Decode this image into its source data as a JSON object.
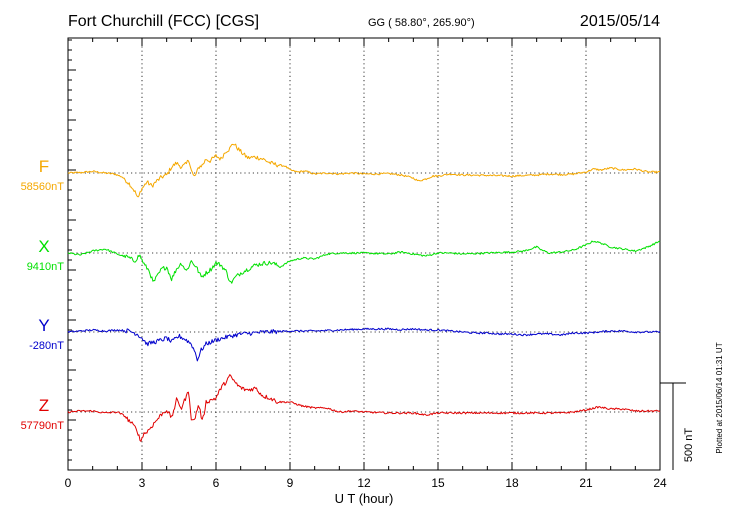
{
  "chart_data": {
    "type": "line",
    "title": "Fort Churchill (FCC)  [CGS]",
    "coords": "GG ( 58.80°, 265.90°)",
    "date": "2015/05/14",
    "xlabel": "U T (hour)",
    "xlim": [
      0,
      24
    ],
    "xticks": [
      "0",
      "3",
      "6",
      "9",
      "12",
      "15",
      "18",
      "21",
      "24"
    ],
    "scale_label": "500 nT",
    "scale_nT": 500,
    "plotted_note": "Plotted at 2015/06/14 01:31  UT",
    "grid": "dotted vertical at 3-hour ticks, dotted baseline per series",
    "series": [
      {
        "name": "F",
        "baseline_label": "58560nT",
        "color": "#f5a800",
        "offset_nT": 1050,
        "x": [
          0,
          0.5,
          1,
          1.5,
          1.9,
          2.2,
          2.5,
          2.7,
          2.85,
          2.95,
          3.05,
          3.2,
          3.4,
          3.6,
          3.8,
          4.0,
          4.2,
          4.4,
          4.6,
          4.8,
          4.9,
          5.0,
          5.1,
          5.2,
          5.3,
          5.45,
          5.6,
          5.75,
          6.0,
          6.2,
          6.4,
          6.55,
          6.7,
          6.9,
          7.1,
          7.3,
          7.6,
          7.9,
          8.2,
          8.5,
          8.8,
          9.0,
          9.3,
          9.6,
          10,
          10.5,
          11,
          11.5,
          12,
          12.5,
          13,
          13.5,
          14,
          14.2,
          14.5,
          14.8,
          15,
          15.5,
          16,
          17,
          18,
          19,
          19.5,
          20,
          20.5,
          21,
          21.3,
          21.6,
          22,
          22.5,
          23,
          23.5,
          24
        ],
        "values": [
          0,
          2,
          8,
          0,
          -5,
          -20,
          -55,
          -90,
          -130,
          -85,
          -70,
          -45,
          -65,
          -40,
          -20,
          -10,
          30,
          50,
          30,
          45,
          70,
          15,
          -20,
          -5,
          30,
          40,
          70,
          60,
          85,
          70,
          110,
          120,
          150,
          120,
          95,
          75,
          80,
          70,
          50,
          40,
          35,
          15,
          5,
          10,
          -5,
          0,
          -5,
          0,
          -5,
          -5,
          -3,
          -10,
          -25,
          -40,
          -30,
          -15,
          -15,
          -5,
          -10,
          -12,
          -15,
          -10,
          -5,
          -8,
          -5,
          5,
          20,
          15,
          25,
          15,
          20,
          5,
          5
        ]
      },
      {
        "name": "X",
        "baseline_label": "9410nT",
        "color": "#00e000",
        "offset_nT": 650,
        "x": [
          0,
          0.5,
          1,
          1.5,
          1.8,
          2.1,
          2.4,
          2.7,
          2.9,
          3.1,
          3.3,
          3.45,
          3.6,
          3.8,
          4.0,
          4.2,
          4.4,
          4.6,
          4.8,
          5.0,
          5.2,
          5.4,
          5.6,
          5.8,
          6.0,
          6.2,
          6.4,
          6.6,
          6.8,
          7.0,
          7.3,
          7.6,
          8.0,
          8.3,
          8.6,
          9,
          9.5,
          10,
          10.5,
          11,
          12,
          13,
          13.5,
          14,
          14.5,
          15,
          15.5,
          16,
          17,
          18,
          18.5,
          19,
          19.2,
          19.5,
          20,
          20.5,
          21,
          21.3,
          21.6,
          22,
          22.5,
          23,
          23.5,
          24
        ],
        "values": [
          0,
          -10,
          10,
          20,
          5,
          -10,
          -20,
          -40,
          -10,
          -60,
          -90,
          -150,
          -120,
          -80,
          -70,
          -130,
          -80,
          -50,
          -90,
          -40,
          -70,
          -120,
          -100,
          -80,
          -50,
          -60,
          -90,
          -150,
          -120,
          -100,
          -80,
          -60,
          -50,
          -50,
          -70,
          -40,
          -25,
          -30,
          -5,
          0,
          0,
          -5,
          5,
          -5,
          -15,
          0,
          0,
          -5,
          0,
          5,
          10,
          30,
          15,
          0,
          5,
          15,
          40,
          60,
          50,
          30,
          20,
          10,
          30,
          60
        ]
      },
      {
        "name": "Y",
        "baseline_label": "-280nT",
        "color": "#0000cc",
        "offset_nT": 255,
        "x": [
          0,
          0.5,
          1,
          1.5,
          2,
          2.5,
          2.8,
          3.0,
          3.2,
          3.5,
          3.8,
          4.0,
          4.2,
          4.5,
          4.8,
          5.0,
          5.15,
          5.25,
          5.4,
          5.6,
          5.8,
          6.0,
          6.3,
          6.6,
          7.0,
          7.5,
          8,
          9,
          10,
          11,
          12,
          12.5,
          13,
          13.5,
          14,
          14.5,
          15,
          15.5,
          16,
          16.5,
          17,
          17.5,
          18,
          18.5,
          19,
          19.5,
          20,
          20.5,
          21,
          21.5,
          22,
          22.5,
          23,
          23.5,
          24
        ],
        "values": [
          0,
          5,
          10,
          5,
          10,
          5,
          -10,
          -30,
          -60,
          -50,
          -40,
          -30,
          -50,
          -20,
          -40,
          -60,
          -100,
          -140,
          -90,
          -60,
          -50,
          -40,
          -30,
          -20,
          -10,
          -5,
          0,
          5,
          5,
          10,
          15,
          15,
          15,
          12,
          15,
          10,
          10,
          5,
          0,
          -5,
          -5,
          -10,
          -10,
          -15,
          -10,
          -10,
          -15,
          -5,
          -5,
          0,
          5,
          5,
          0,
          0,
          0
        ]
      },
      {
        "name": "Z",
        "baseline_label": "57790nT",
        "color": "#e00000",
        "offset_nT": -145,
        "x": [
          0,
          0.5,
          1,
          1.5,
          2,
          2.3,
          2.6,
          2.8,
          2.95,
          3.05,
          3.2,
          3.4,
          3.6,
          3.8,
          4.0,
          4.2,
          4.4,
          4.6,
          4.8,
          4.9,
          5.0,
          5.1,
          5.3,
          5.45,
          5.6,
          5.8,
          6.0,
          6.2,
          6.4,
          6.55,
          6.7,
          6.9,
          7.1,
          7.3,
          7.6,
          7.9,
          8.2,
          8.5,
          9,
          9.5,
          10,
          10.5,
          11,
          11.5,
          12,
          13,
          14,
          14.5,
          15,
          15.5,
          16,
          17,
          18,
          19,
          20,
          20.5,
          21,
          21.5,
          22,
          22.5,
          23,
          23.5,
          24
        ],
        "values": [
          0,
          5,
          5,
          -5,
          0,
          -20,
          -60,
          -90,
          -150,
          -110,
          -100,
          -70,
          -40,
          -10,
          10,
          -30,
          60,
          20,
          80,
          100,
          -30,
          -50,
          40,
          -50,
          50,
          60,
          70,
          120,
          150,
          180,
          160,
          130,
          115,
          110,
          120,
          80,
          70,
          50,
          50,
          30,
          20,
          20,
          0,
          5,
          0,
          -5,
          -5,
          -15,
          -5,
          -5,
          -5,
          -5,
          -5,
          -5,
          -5,
          0,
          10,
          25,
          15,
          15,
          5,
          5,
          5
        ]
      }
    ]
  }
}
